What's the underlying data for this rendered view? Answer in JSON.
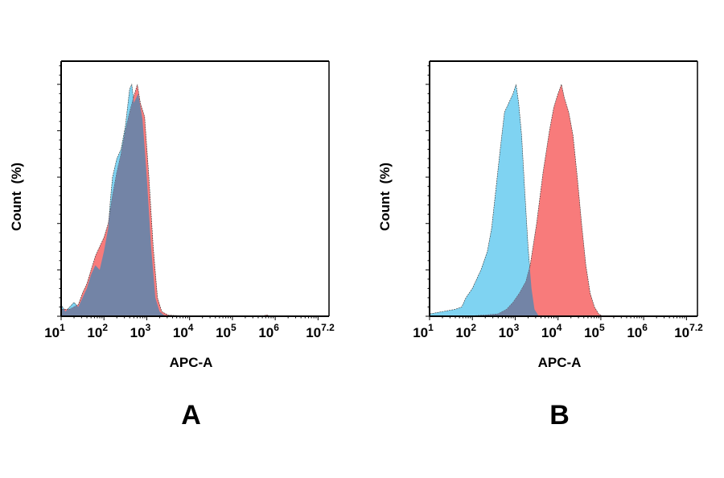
{
  "colors": {
    "control": "#7fd3f2",
    "sample": "#f87b7b",
    "overlap": "#7384a6",
    "outline": "#333333"
  },
  "chart_data": [
    {
      "type": "area",
      "panel_label": "A",
      "xlabel": "APC-A",
      "ylabel": "Count  (%)",
      "xscale": "log",
      "xlim_log10": [
        1,
        7.2
      ],
      "ylim": [
        0,
        110
      ],
      "x_ticks": [
        {
          "base": "10",
          "exp": "1"
        },
        {
          "base": "10",
          "exp": "2"
        },
        {
          "base": "10",
          "exp": "3"
        },
        {
          "base": "10",
          "exp": "4"
        },
        {
          "base": "10",
          "exp": "5"
        },
        {
          "base": "10",
          "exp": "6"
        },
        {
          "base": "10",
          "exp": "7.2"
        }
      ],
      "y_ticks": [
        "0",
        "20",
        "40",
        "60",
        "80",
        "100"
      ],
      "grid": false,
      "series": [
        {
          "color_key": "control",
          "log10_x": [
            1.0,
            1.1,
            1.2,
            1.3,
            1.4,
            1.5,
            1.6,
            1.7,
            1.8,
            1.9,
            2.0,
            2.1,
            2.15,
            2.2,
            2.3,
            2.4,
            2.5,
            2.6,
            2.65,
            2.7,
            2.8,
            2.9,
            3.0,
            3.1,
            3.2,
            3.3,
            3.4,
            3.6
          ],
          "y": [
            5,
            2,
            4,
            6,
            4,
            8,
            12,
            18,
            22,
            20,
            28,
            38,
            50,
            60,
            68,
            72,
            82,
            98,
            100,
            92,
            96,
            85,
            60,
            30,
            8,
            2,
            0.5,
            0
          ]
        },
        {
          "color_key": "sample",
          "log10_x": [
            1.0,
            1.2,
            1.4,
            1.5,
            1.6,
            1.7,
            1.8,
            1.9,
            2.0,
            2.1,
            2.2,
            2.3,
            2.4,
            2.5,
            2.6,
            2.7,
            2.78,
            2.85,
            2.95,
            3.05,
            3.15,
            3.25,
            3.35,
            3.5,
            3.7,
            4.0,
            5.7,
            5.8,
            5.9
          ],
          "y": [
            3,
            3,
            5,
            10,
            14,
            20,
            26,
            30,
            34,
            40,
            52,
            62,
            70,
            80,
            88,
            95,
            100,
            92,
            86,
            60,
            30,
            8,
            2,
            0.5,
            0.3,
            0,
            0,
            0.6,
            0
          ]
        }
      ]
    },
    {
      "type": "area",
      "panel_label": "B",
      "xlabel": "APC-A",
      "ylabel": "Count  (%)",
      "xscale": "log",
      "xlim_log10": [
        1,
        7.2
      ],
      "ylim": [
        0,
        110
      ],
      "x_ticks": [
        {
          "base": "10",
          "exp": "1"
        },
        {
          "base": "10",
          "exp": "2"
        },
        {
          "base": "10",
          "exp": "3"
        },
        {
          "base": "10",
          "exp": "4"
        },
        {
          "base": "10",
          "exp": "5"
        },
        {
          "base": "10",
          "exp": "6"
        },
        {
          "base": "10",
          "exp": "7.2"
        }
      ],
      "y_ticks": [
        "0",
        "20",
        "40",
        "60",
        "80",
        "100"
      ],
      "grid": false,
      "series": [
        {
          "color_key": "control",
          "log10_x": [
            1.0,
            1.3,
            1.6,
            1.75,
            1.85,
            2.0,
            2.1,
            2.2,
            2.35,
            2.45,
            2.55,
            2.65,
            2.75,
            2.85,
            2.95,
            3.02,
            3.08,
            3.15,
            3.22,
            3.3,
            3.38,
            3.45,
            3.55
          ],
          "y": [
            1,
            2,
            3,
            4,
            8,
            12,
            16,
            20,
            28,
            38,
            55,
            72,
            88,
            92,
            96,
            100,
            92,
            78,
            55,
            30,
            12,
            3,
            0
          ]
        },
        {
          "color_key": "sample",
          "log10_x": [
            1.8,
            2.3,
            2.6,
            2.8,
            2.95,
            3.1,
            3.25,
            3.35,
            3.5,
            3.65,
            3.8,
            3.9,
            4.0,
            4.08,
            4.15,
            4.25,
            4.35,
            4.45,
            4.55,
            4.65,
            4.75,
            4.85,
            4.95,
            5.05
          ],
          "y": [
            0,
            0.5,
            1,
            3,
            6,
            10,
            15,
            22,
            40,
            62,
            80,
            90,
            96,
            100,
            94,
            88,
            78,
            60,
            40,
            22,
            10,
            4,
            1,
            0
          ]
        }
      ]
    }
  ]
}
